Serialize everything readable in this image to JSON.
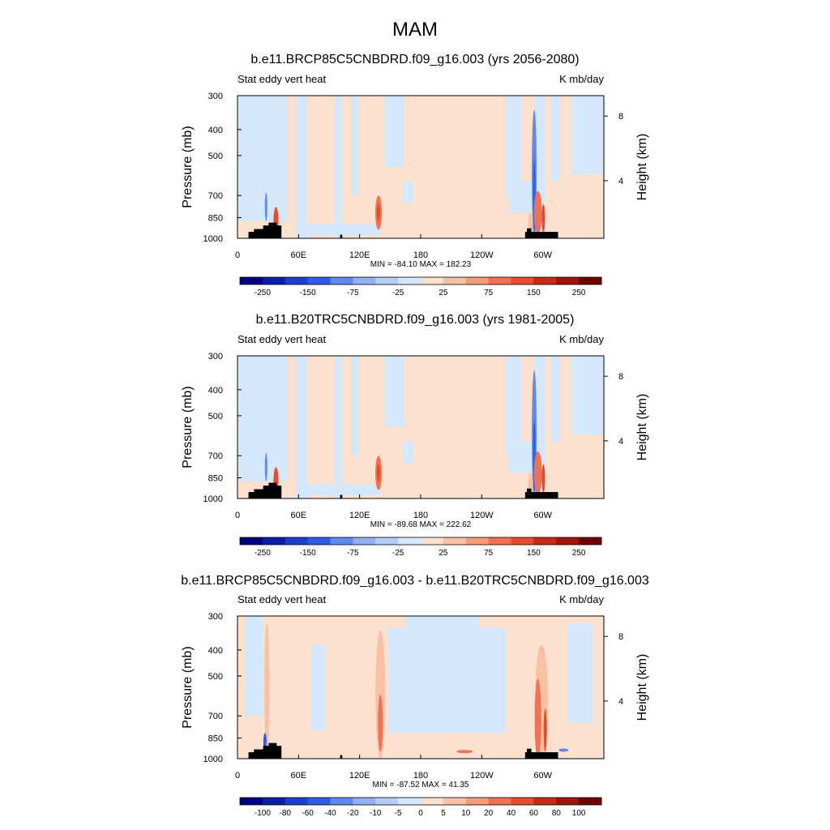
{
  "figure": {
    "title": "MAM"
  },
  "colors": {
    "land_mask": "#000000",
    "full_field_scale": [
      "#00007f",
      "#0a1fa8",
      "#1c3fd0",
      "#2f5ce6",
      "#5f89ee",
      "#8fb1f2",
      "#b5cdf6",
      "#d5e7fb",
      "#fde1cf",
      "#f9c0a3",
      "#f59b7a",
      "#f07153",
      "#e84a2c",
      "#c92a16",
      "#9f150b",
      "#6e0000"
    ],
    "difference_scale": [
      "#00007f",
      "#0a1fa8",
      "#1c3fd0",
      "#2f5ce6",
      "#5f89ee",
      "#8fb1f2",
      "#b5cdf6",
      "#d5e7fb",
      "#fde1cf",
      "#f9c0a3",
      "#f59b7a",
      "#f07153",
      "#e84a2c",
      "#c92a16",
      "#9f150b",
      "#6e0000"
    ]
  },
  "chart_data": [
    {
      "type": "heatmap",
      "title": "b.e11.BRCP85C5CNBDRD.f09_g16.003 (yrs 2056-2080)",
      "left_label": "Stat eddy vert heat",
      "right_label": "K mb/day",
      "xlabel": "",
      "ylabel": "Pressure (mb)",
      "ylabel_right": "Height (km)",
      "x_ticks": [
        "0",
        "60E",
        "120E",
        "180",
        "120W",
        "60W"
      ],
      "y_ticks": [
        "300",
        "400",
        "500",
        "700",
        "850",
        "1000"
      ],
      "y_ticks_right": [
        "8",
        "4"
      ],
      "stats": "MIN = -84.10  MAX = 182.23",
      "colorbar_labels": [
        "-250",
        "-150",
        "-75",
        "-25",
        "25",
        "75",
        "150",
        "250"
      ],
      "min": -84.1,
      "max": 182.23
    },
    {
      "type": "heatmap",
      "title": "b.e11.B20TRC5CNBDRD.f09_g16.003 (yrs 1981-2005)",
      "left_label": "Stat eddy vert heat",
      "right_label": "K mb/day",
      "xlabel": "",
      "ylabel": "Pressure (mb)",
      "ylabel_right": "Height (km)",
      "x_ticks": [
        "0",
        "60E",
        "120E",
        "180",
        "120W",
        "60W"
      ],
      "y_ticks": [
        "300",
        "400",
        "500",
        "700",
        "850",
        "1000"
      ],
      "y_ticks_right": [
        "8",
        "4"
      ],
      "stats": "MIN = -89.68  MAX = 222.62",
      "colorbar_labels": [
        "-250",
        "-150",
        "-75",
        "-25",
        "25",
        "75",
        "150",
        "250"
      ],
      "min": -89.68,
      "max": 222.62
    },
    {
      "type": "heatmap",
      "title": "b.e11.BRCP85C5CNBDRD.f09_g16.003 - b.e11.B20TRC5CNBDRD.f09_g16.003",
      "left_label": "Stat eddy vert heat",
      "right_label": "K mb/day",
      "xlabel": "",
      "ylabel": "Pressure (mb)",
      "ylabel_right": "Height (km)",
      "x_ticks": [
        "0",
        "60E",
        "120E",
        "180",
        "120W",
        "60W"
      ],
      "y_ticks": [
        "300",
        "400",
        "500",
        "700",
        "850",
        "1000"
      ],
      "y_ticks_right": [
        "8",
        "4"
      ],
      "stats": "MIN = -87.52  MAX = 41.35",
      "colorbar_labels": [
        "-100",
        "-80",
        "-60",
        "-40",
        "-20",
        "-10",
        "-5",
        "0",
        "5",
        "10",
        "20",
        "40",
        "60",
        "80",
        "100"
      ],
      "min": -87.52,
      "max": 41.35
    }
  ]
}
